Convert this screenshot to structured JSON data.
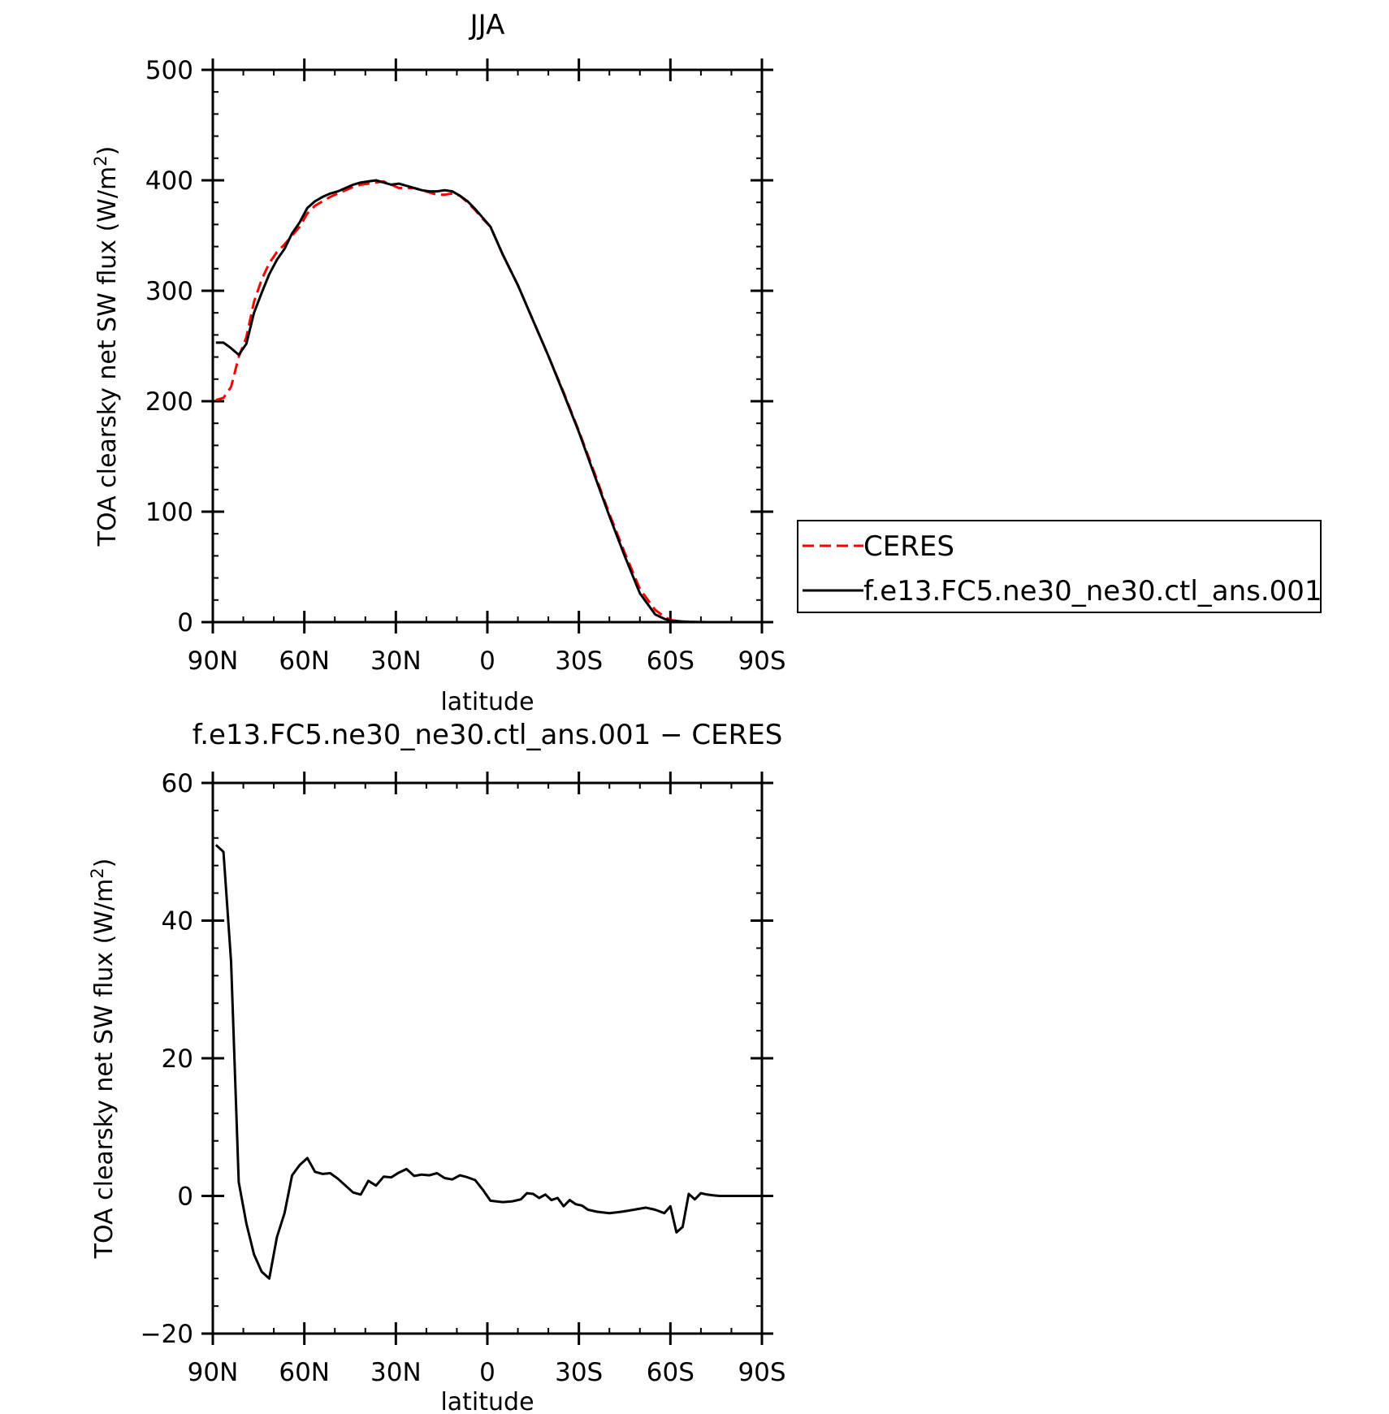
{
  "chart_data": [
    {
      "type": "line",
      "title": "JJA",
      "xlabel": "latitude",
      "ylabel_main": "TOA clearsky net SW flux (W/m",
      "ylabel_sup": "2",
      "ylabel_close": ")",
      "x_unit": "degrees latitude (positive = N, negative = S)",
      "xlim": [
        90,
        -90
      ],
      "ylim": [
        0,
        500
      ],
      "xticks": [
        90,
        60,
        30,
        0,
        -30,
        -60,
        -90
      ],
      "xtick_labels": [
        "90N",
        "60N",
        "30N",
        "0",
        "30S",
        "60S",
        "90S"
      ],
      "yticks": [
        0,
        100,
        200,
        300,
        400,
        500
      ],
      "ytick_labels": [
        "0",
        "100",
        "200",
        "300",
        "400",
        "500"
      ],
      "grid": false,
      "legend_placement": "right, outside plot",
      "series": [
        {
          "name": "CERES",
          "color": "#ff0000",
          "style": "dashed",
          "x": [
            89,
            86.5,
            84,
            81.5,
            79,
            76.5,
            74,
            71.5,
            69,
            66.5,
            64,
            61.5,
            59,
            56.5,
            54,
            51.5,
            49,
            46.5,
            44,
            41.5,
            39,
            36.5,
            34,
            31.5,
            29,
            26.5,
            24,
            21.5,
            19,
            16.5,
            14,
            11.5,
            9,
            6.5,
            4,
            1.5,
            -1,
            -5,
            -10,
            -15,
            -20,
            -25,
            -30,
            -35,
            -40,
            -45,
            -50,
            -55,
            -58,
            -60,
            -62,
            -64,
            -66,
            -68,
            -70,
            -72,
            -74,
            -76,
            -78,
            -80,
            -82,
            -84,
            -86,
            -88
          ],
          "y": [
            201,
            203,
            213,
            240,
            258,
            290,
            310,
            325,
            335,
            342,
            350,
            358,
            370,
            377,
            381,
            385,
            388,
            391,
            394,
            396,
            397,
            398,
            399,
            396,
            393,
            393,
            393,
            391,
            389,
            387,
            387,
            388,
            386,
            380,
            373,
            365,
            358,
            333,
            305,
            273,
            241,
            208,
            173,
            136,
            98,
            63,
            30,
            11,
            5,
            2,
            1,
            0.5,
            0.3,
            0.2,
            0.1,
            0,
            0,
            0,
            0,
            0,
            0,
            0,
            0,
            0
          ]
        },
        {
          "name": "f.e13.FC5.ne30_ne30.ctl_ans.001",
          "color": "#000000",
          "style": "solid",
          "x": [
            89,
            86.5,
            84,
            81.5,
            79,
            76.5,
            74,
            71.5,
            69,
            66.5,
            64,
            61.5,
            59,
            56.5,
            54,
            51.5,
            49,
            46.5,
            44,
            41.5,
            39,
            36.5,
            34,
            31.5,
            29,
            26.5,
            24,
            21.5,
            19,
            16.5,
            14,
            11.5,
            9,
            6.5,
            4,
            1.5,
            -1,
            -5,
            -10,
            -15,
            -20,
            -25,
            -30,
            -35,
            -40,
            -45,
            -50,
            -55,
            -58,
            -60,
            -62,
            -64,
            -66,
            -68,
            -70,
            -72,
            -74,
            -76,
            -78,
            -80,
            -82,
            -84,
            -86,
            -88
          ],
          "y": [
            253,
            253,
            248,
            242,
            252,
            280,
            298,
            315,
            328,
            338,
            352,
            362,
            375,
            381,
            385,
            388,
            390,
            393,
            396,
            398,
            399,
            400,
            398,
            396,
            397,
            395,
            393,
            391,
            390,
            390,
            391,
            390,
            386,
            381,
            374,
            366,
            358,
            333,
            305,
            273,
            241,
            207,
            172,
            134,
            96,
            60,
            26,
            7,
            3,
            1.5,
            1,
            0.5,
            0.3,
            0.2,
            0.1,
            0,
            0,
            0,
            0,
            0,
            0,
            0,
            0,
            0
          ]
        }
      ]
    },
    {
      "type": "line",
      "title": "f.e13.FC5.ne30_ne30.ctl_ans.001 − CERES",
      "xlabel": "latitude",
      "ylabel_main": "TOA clearsky net SW flux (W/m",
      "ylabel_sup": "2",
      "ylabel_close": ")",
      "x_unit": "degrees latitude (positive = N, negative = S)",
      "xlim": [
        90,
        -90
      ],
      "ylim": [
        -20,
        60
      ],
      "xticks": [
        90,
        60,
        30,
        0,
        -30,
        -60,
        -90
      ],
      "xtick_labels": [
        "90N",
        "60N",
        "30N",
        "0",
        "30S",
        "60S",
        "90S"
      ],
      "yticks": [
        -20,
        0,
        20,
        40,
        60
      ],
      "ytick_labels": [
        "−20",
        "0",
        "20",
        "40",
        "60"
      ],
      "grid": false,
      "series": [
        {
          "color": "#000000",
          "style": "solid",
          "x": [
            89,
            86.5,
            84,
            81.5,
            79,
            76.5,
            74,
            71.5,
            69,
            66.5,
            64,
            61.5,
            59,
            56.5,
            54,
            51.5,
            49,
            46.5,
            44,
            41.5,
            39,
            36.5,
            34,
            31.5,
            29,
            26.5,
            24,
            21.5,
            19,
            16.5,
            14,
            11.5,
            9,
            6.5,
            4,
            1.5,
            -1,
            -5,
            -8,
            -11,
            -13,
            -15,
            -17,
            -19,
            -21,
            -23,
            -25,
            -27,
            -29,
            -31,
            -33,
            -36,
            -40,
            -44,
            -48,
            -52,
            -55,
            -58,
            -60,
            -62,
            -64,
            -66,
            -68,
            -70,
            -72,
            -74,
            -76,
            -80,
            -84,
            -88
          ],
          "y": [
            51,
            50,
            34,
            2,
            -4,
            -8.5,
            -11,
            -12,
            -6,
            -2.5,
            3,
            4.5,
            5.5,
            3.5,
            3.2,
            3.3,
            2.5,
            1.5,
            0.5,
            0.2,
            2.2,
            1.5,
            2.8,
            2.7,
            3.4,
            3.9,
            2.9,
            3.1,
            3.0,
            3.3,
            2.6,
            2.4,
            3.0,
            2.7,
            2.3,
            0.9,
            -0.7,
            -0.9,
            -0.8,
            -0.5,
            0.4,
            0.3,
            -0.3,
            0.2,
            -0.6,
            -0.3,
            -1.5,
            -0.6,
            -1.2,
            -1.4,
            -2.0,
            -2.3,
            -2.5,
            -2.3,
            -2.0,
            -1.7,
            -2.0,
            -2.5,
            -1.5,
            -5.3,
            -4.5,
            0.3,
            -0.5,
            0.4,
            0.2,
            0.1,
            0.0,
            0.0,
            0.0,
            0.0
          ]
        }
      ]
    }
  ]
}
